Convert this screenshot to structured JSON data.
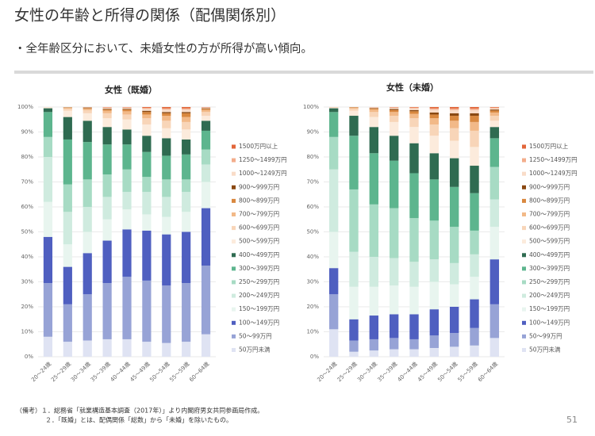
{
  "slide_title": "女性の年齢と所得の関係（配偶関係別）",
  "bullet": "・全年齢区分において、未婚女性の方が所得が高い傾向。",
  "notes": [
    "（備考）１．総務省「就業構造基本調査（2017年）」より内閣府男女共同参画局作成。",
    "２．「既婚」とは、配偶関係「総数」から「未婚」を除いたもの。"
  ],
  "page_number": "51",
  "chart_data": [
    {
      "type": "stacked_bar",
      "title": "女性（既婚）",
      "categories": [
        "20～24歳",
        "25～29歳",
        "30～34歳",
        "35～39歳",
        "40～44歳",
        "45～49歳",
        "50～54歳",
        "55～59歳",
        "60～64歳"
      ],
      "ylim": [
        0,
        100
      ],
      "yticks": [
        {
          "value": 0,
          "label": "0%"
        },
        {
          "value": 10,
          "label": "10%"
        },
        {
          "value": 20,
          "label": "20%"
        },
        {
          "value": 30,
          "label": "30%"
        },
        {
          "value": 40,
          "label": "40%"
        },
        {
          "value": 50,
          "label": "50%"
        },
        {
          "value": 60,
          "label": "60%"
        },
        {
          "value": 70,
          "label": "70%"
        },
        {
          "value": 80,
          "label": "80%"
        },
        {
          "value": 90,
          "label": "90%"
        },
        {
          "value": 100,
          "label": "100%"
        }
      ],
      "grid": true,
      "legend": "right",
      "series": [
        {
          "name": "50万円未満",
          "color": "#dfe3f3",
          "values": [
            8,
            6,
            6.5,
            7,
            7,
            6,
            5.5,
            6,
            9
          ]
        },
        {
          "name": "50～99万円",
          "color": "#97a3d6",
          "values": [
            21.5,
            15,
            18.5,
            22.5,
            25,
            24.5,
            23,
            23.5,
            27.5
          ]
        },
        {
          "name": "100～149万円",
          "color": "#4f5fc0",
          "values": [
            18.5,
            15,
            16.5,
            17,
            19,
            20,
            20.5,
            20.5,
            23
          ]
        },
        {
          "name": "150～199万円",
          "color": "#e8f5ef",
          "values": [
            14,
            9,
            8.5,
            8.5,
            8,
            6.5,
            7,
            8,
            10.5
          ]
        },
        {
          "name": "200～249万円",
          "color": "#cfebdf",
          "values": [
            18,
            13,
            10,
            9,
            7,
            9,
            8,
            8,
            7
          ]
        },
        {
          "name": "250～299万円",
          "color": "#a7dbc4",
          "values": [
            8,
            11,
            11,
            9,
            9,
            6,
            7,
            5,
            6
          ]
        },
        {
          "name": "300～399万円",
          "color": "#5db58e",
          "values": [
            10,
            18,
            15,
            12,
            10,
            10,
            9.5,
            10,
            7.5
          ]
        },
        {
          "name": "400～499万円",
          "color": "#2f6b51",
          "values": [
            1.5,
            9,
            8.5,
            7,
            6,
            6.5,
            7,
            6,
            4
          ]
        },
        {
          "name": "500～599万円",
          "color": "#fcebdc",
          "values": [
            0.5,
            2.5,
            3,
            3.5,
            4,
            4.5,
            4,
            4,
            2
          ]
        },
        {
          "name": "600～699万円",
          "color": "#f8d5b8",
          "values": [
            0,
            0.8,
            1.2,
            2,
            2,
            2.5,
            3,
            3,
            1.5
          ]
        },
        {
          "name": "700～799万円",
          "color": "#f2b988",
          "values": [
            0,
            0.3,
            0.6,
            1,
            1.3,
            1.5,
            2,
            2,
            0.8
          ]
        },
        {
          "name": "800～899万円",
          "color": "#d9883f",
          "values": [
            0,
            0.2,
            0.3,
            0.5,
            0.7,
            1,
            1,
            1.5,
            0.5
          ]
        },
        {
          "name": "900～999万円",
          "color": "#8a4912",
          "values": [
            0,
            0.1,
            0.2,
            0.3,
            0.3,
            0.5,
            0.5,
            0.5,
            0.2
          ]
        },
        {
          "name": "1000～1249万円",
          "color": "#f9dcc8",
          "values": [
            0,
            0.1,
            0.1,
            0.4,
            0.4,
            0.8,
            1,
            1,
            0.3
          ]
        },
        {
          "name": "1250～1499万円",
          "color": "#f3ad8c",
          "values": [
            0,
            0,
            0.1,
            0.2,
            0.2,
            0.4,
            0.5,
            0.5,
            0.1
          ]
        },
        {
          "name": "1500万円以上",
          "color": "#e2663a",
          "values": [
            0,
            0,
            0,
            0.1,
            0.1,
            0.3,
            0.5,
            0.5,
            0.1
          ]
        }
      ]
    },
    {
      "type": "stacked_bar",
      "title": "女性（未婚）",
      "categories": [
        "20～24歳",
        "25～29歳",
        "30～34歳",
        "35～39歳",
        "40～44歳",
        "45～49歳",
        "50～54歳",
        "55～59歳",
        "60～64歳"
      ],
      "ylim": [
        0,
        100
      ],
      "yticks": [
        {
          "value": 0,
          "label": "0%"
        },
        {
          "value": 10,
          "label": "10%"
        },
        {
          "value": 20,
          "label": "20%"
        },
        {
          "value": 30,
          "label": "30%"
        },
        {
          "value": 40,
          "label": "40%"
        },
        {
          "value": 50,
          "label": "50%"
        },
        {
          "value": 60,
          "label": "60%"
        },
        {
          "value": 70,
          "label": "70%"
        },
        {
          "value": 80,
          "label": "80%"
        },
        {
          "value": 90,
          "label": "90%"
        },
        {
          "value": 100,
          "label": "100%"
        }
      ],
      "grid": true,
      "legend": "right",
      "series": [
        {
          "name": "50万円未満",
          "color": "#dfe3f3",
          "values": [
            11,
            2,
            2.5,
            3,
            3,
            3.5,
            4,
            4.5,
            7.5
          ]
        },
        {
          "name": "50～99万円",
          "color": "#97a3d6",
          "values": [
            14,
            4.5,
            4.5,
            4.5,
            4,
            5,
            5.5,
            7,
            13.5
          ]
        },
        {
          "name": "100～149万円",
          "color": "#4f5fc0",
          "values": [
            10.5,
            8.5,
            9.5,
            9.5,
            10,
            10.5,
            10.5,
            11.5,
            18
          ]
        },
        {
          "name": "150～199万円",
          "color": "#e8f5ef",
          "values": [
            14.5,
            13,
            11.5,
            11.5,
            11,
            11,
            9,
            9,
            13
          ]
        },
        {
          "name": "200～249万円",
          "color": "#cfebdf",
          "values": [
            25,
            14,
            12,
            11,
            10,
            9,
            8.5,
            9,
            11
          ]
        },
        {
          "name": "250～299万円",
          "color": "#a7dbc4",
          "values": [
            13,
            25,
            21,
            20,
            17.5,
            15.5,
            14.5,
            9.5,
            13
          ]
        },
        {
          "name": "300～399万円",
          "color": "#5db58e",
          "values": [
            10,
            21.5,
            20.5,
            19,
            18,
            16.5,
            16,
            15,
            11.5
          ]
        },
        {
          "name": "400～499万円",
          "color": "#2f6b51",
          "values": [
            1.5,
            8,
            10.5,
            10,
            12,
            10.5,
            11.5,
            11,
            4.5
          ]
        },
        {
          "name": "500～599万円",
          "color": "#fcebdc",
          "values": [
            0.3,
            2,
            4,
            5.5,
            6.5,
            7,
            7,
            7.5,
            2.5
          ]
        },
        {
          "name": "600～699万円",
          "color": "#f8d5b8",
          "values": [
            0.1,
            0.8,
            2,
            2.5,
            3.5,
            4.5,
            5,
            6.5,
            2
          ]
        },
        {
          "name": "700～799万円",
          "color": "#f2b988",
          "values": [
            0.1,
            0.4,
            1,
            1.5,
            1.8,
            2.5,
            3,
            3.5,
            1.3
          ]
        },
        {
          "name": "800～899万円",
          "color": "#d9883f",
          "values": [
            0,
            0.2,
            0.4,
            0.8,
            1,
            1.5,
            2,
            2.5,
            0.8
          ]
        },
        {
          "name": "900～999万円",
          "color": "#8a4912",
          "values": [
            0,
            0.05,
            0.2,
            0.4,
            0.5,
            0.8,
            1,
            1,
            0.4
          ]
        },
        {
          "name": "1000～1249万円",
          "color": "#f9dcc8",
          "values": [
            0,
            0.05,
            0.3,
            0.5,
            0.7,
            1.2,
            1.3,
            1.3,
            0.5
          ]
        },
        {
          "name": "1250～1499万円",
          "color": "#f3ad8c",
          "values": [
            0,
            0,
            0.1,
            0.2,
            0.3,
            0.5,
            0.6,
            0.6,
            0.3
          ]
        },
        {
          "name": "1500万円以上",
          "color": "#e2663a",
          "values": [
            0,
            0,
            0,
            0.1,
            0.2,
            0.5,
            0.6,
            0.6,
            0.2
          ]
        }
      ]
    }
  ]
}
